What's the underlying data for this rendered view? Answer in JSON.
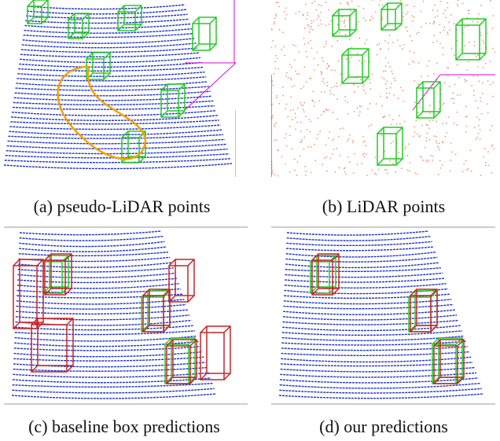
{
  "figure": {
    "panels": [
      {
        "caption": "(a) pseudo-LiDAR points"
      },
      {
        "caption": "(b) LiDAR points"
      },
      {
        "caption": "(c) baseline box predictions"
      },
      {
        "caption": "(d) our predictions"
      }
    ]
  }
}
